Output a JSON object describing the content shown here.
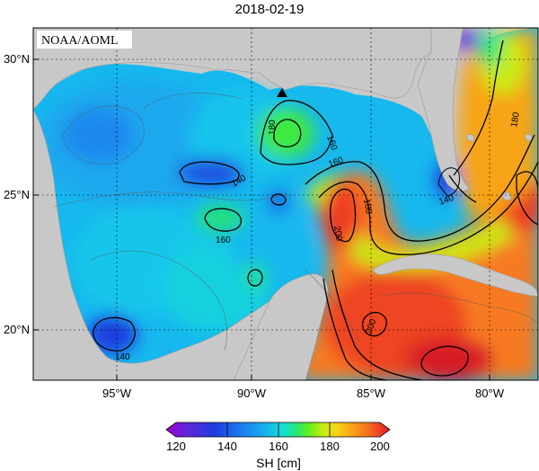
{
  "title": "2018-02-19",
  "badge": "NOAA/AOML",
  "lat_labels": [
    "30°N",
    "25°N",
    "20°N"
  ],
  "lon_labels": [
    "95°W",
    "90°W",
    "85°W",
    "80°W"
  ],
  "contour_labels": {
    "c180_loop": "180",
    "c160_ne": "160",
    "c160_mid": "160",
    "c140_west": "140",
    "c160_center": "160",
    "c200_a": "200",
    "c180_b": "180",
    "c200_b": "200",
    "c140_south": "140",
    "c180_east": "180",
    "c140_keys": "140"
  },
  "colorbar": {
    "ticks": [
      "120",
      "140",
      "160",
      "180",
      "200"
    ],
    "label": "SH [cm]",
    "colors": [
      "#a000d8",
      "#5a2ad8",
      "#1e3ce0",
      "#1c7ef0",
      "#16b0ee",
      "#14ded8",
      "#26e67a",
      "#66ee1a",
      "#c8ec16",
      "#f6d418",
      "#f7a418",
      "#f77220",
      "#ee3c24",
      "#d81c26"
    ]
  },
  "colors": {
    "land": "#c8c8c8",
    "ocean_low": "#1e3ce0",
    "ocean_mid": "#14c8e6",
    "ocean_high": "#ee3c24"
  }
}
